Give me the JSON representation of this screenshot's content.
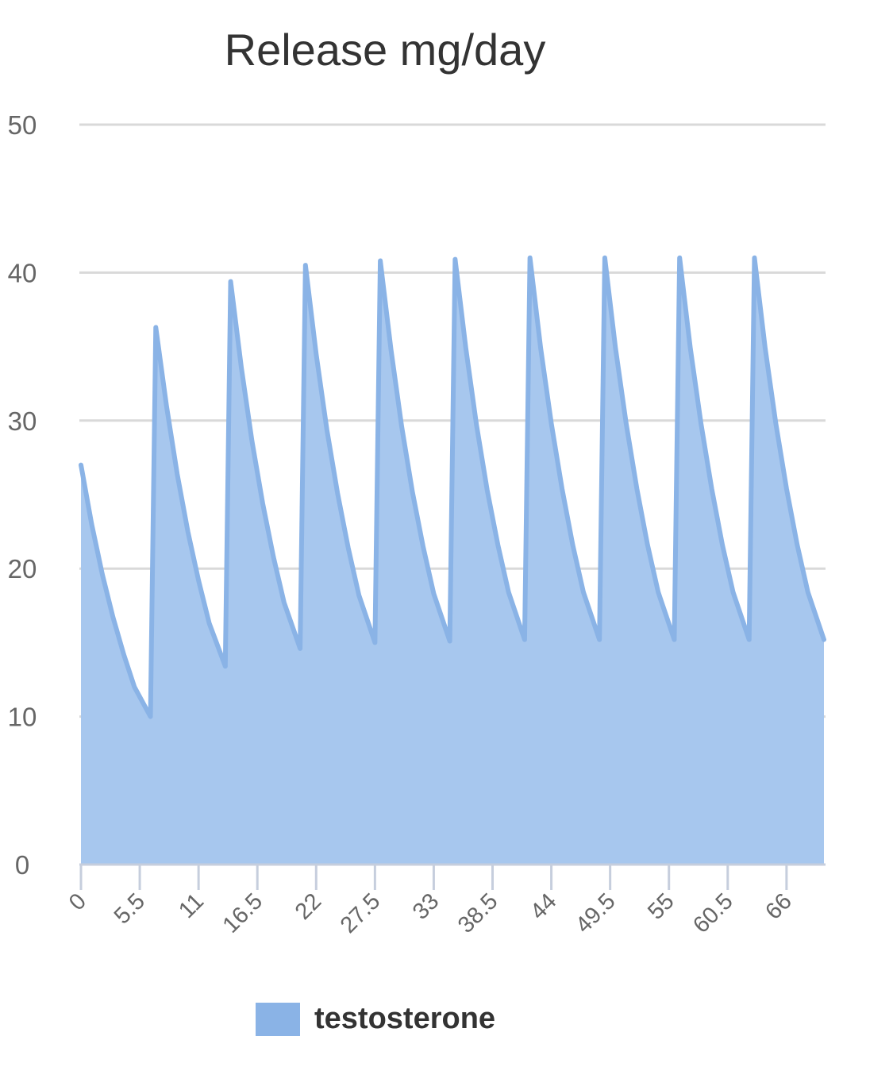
{
  "chart_data": {
    "type": "area",
    "title": "Release mg/day",
    "xlabel": "",
    "ylabel": "",
    "ylim": [
      0,
      50
    ],
    "yticks": [
      0,
      10,
      20,
      30,
      40,
      50
    ],
    "xlim": [
      0,
      69.5
    ],
    "xticks": [
      0,
      5.5,
      11,
      16.5,
      22,
      27.5,
      33,
      38.5,
      44,
      49.5,
      55,
      60.5,
      66
    ],
    "xtick_labels": [
      "0",
      "5.5",
      "11",
      "16.5",
      "22",
      "27.5",
      "33",
      "38.5",
      "44",
      "49.5",
      "55",
      "60.5",
      "66"
    ],
    "grid": true,
    "legend_position": "bottom-center",
    "series": [
      {
        "name": "testosterone",
        "color": "#8ab3e6",
        "points": [
          [
            0,
            27.0
          ],
          [
            1,
            23.0
          ],
          [
            2,
            19.6
          ],
          [
            3,
            16.7
          ],
          [
            4,
            14.2
          ],
          [
            5,
            12.0
          ],
          [
            6.5,
            10.0
          ],
          [
            7,
            36.3
          ],
          [
            8,
            31.0
          ],
          [
            9,
            26.4
          ],
          [
            10,
            22.5
          ],
          [
            11,
            19.2
          ],
          [
            12,
            16.3
          ],
          [
            13.5,
            13.4
          ],
          [
            14,
            39.4
          ],
          [
            15,
            33.6
          ],
          [
            16,
            28.6
          ],
          [
            17,
            24.4
          ],
          [
            18,
            20.8
          ],
          [
            19,
            17.7
          ],
          [
            20.5,
            14.6
          ],
          [
            21,
            40.5
          ],
          [
            22,
            34.5
          ],
          [
            23,
            29.4
          ],
          [
            24,
            25.1
          ],
          [
            25,
            21.4
          ],
          [
            26,
            18.2
          ],
          [
            27.5,
            15.0
          ],
          [
            28,
            40.8
          ],
          [
            29,
            34.8
          ],
          [
            30,
            29.6
          ],
          [
            31,
            25.2
          ],
          [
            32,
            21.5
          ],
          [
            33,
            18.3
          ],
          [
            34.5,
            15.1
          ],
          [
            35,
            40.9
          ],
          [
            36,
            34.9
          ],
          [
            37,
            29.7
          ],
          [
            38,
            25.3
          ],
          [
            39,
            21.6
          ],
          [
            40,
            18.4
          ],
          [
            41.5,
            15.2
          ],
          [
            42,
            41.0
          ],
          [
            43,
            34.9
          ],
          [
            44,
            29.8
          ],
          [
            45,
            25.4
          ],
          [
            46,
            21.6
          ],
          [
            47,
            18.4
          ],
          [
            48.5,
            15.2
          ],
          [
            49,
            41.0
          ],
          [
            50,
            34.9
          ],
          [
            51,
            29.8
          ],
          [
            52,
            25.4
          ],
          [
            53,
            21.6
          ],
          [
            54,
            18.4
          ],
          [
            55.5,
            15.2
          ],
          [
            56,
            41.0
          ],
          [
            57,
            34.9
          ],
          [
            58,
            29.8
          ],
          [
            59,
            25.4
          ],
          [
            60,
            21.6
          ],
          [
            61,
            18.4
          ],
          [
            62.5,
            15.2
          ],
          [
            63,
            41.0
          ],
          [
            64,
            34.9
          ],
          [
            65,
            29.8
          ],
          [
            66,
            25.4
          ],
          [
            67,
            21.6
          ],
          [
            68,
            18.4
          ],
          [
            69.5,
            15.2
          ]
        ]
      }
    ]
  },
  "colors": {
    "series_fill": "#a7c7ee",
    "series_line": "#8ab3e6",
    "grid": "#d9d9d9",
    "axis": "#c6cedd"
  }
}
